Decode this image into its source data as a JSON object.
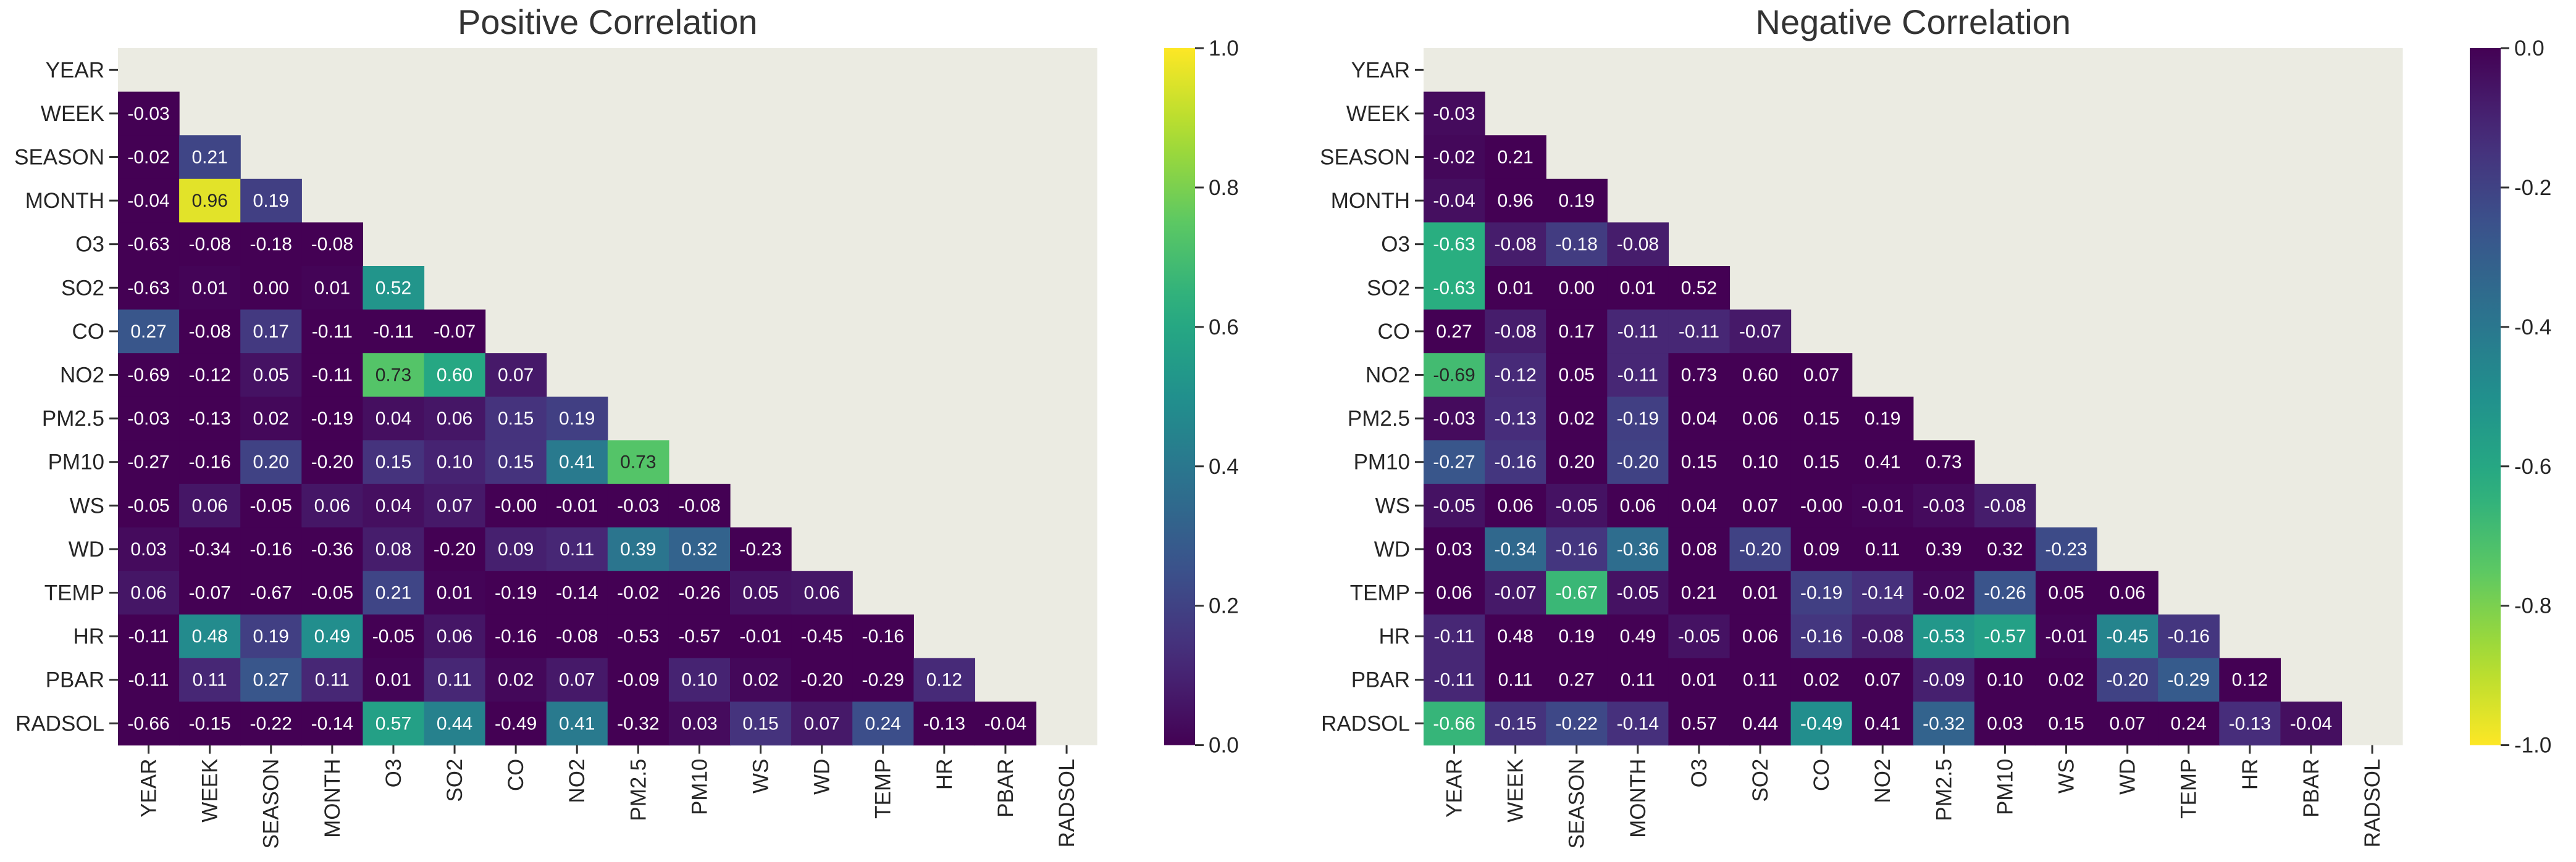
{
  "chart_data": [
    {
      "type": "heatmap",
      "title": "Positive Correlation",
      "colormap": "viridis",
      "colorbar": {
        "range": [
          0,
          1
        ],
        "ticks": [
          "0.0",
          "0.2",
          "0.4",
          "0.6",
          "0.8",
          "1.0"
        ]
      },
      "masked_cell_color": "#ebebe2",
      "variables": [
        "YEAR",
        "WEEK",
        "SEASON",
        "MONTH",
        "O3",
        "SO2",
        "CO",
        "NO2",
        "PM2.5",
        "PM10",
        "WS",
        "WD",
        "TEMP",
        "HR",
        "PBAR",
        "RADSOL"
      ],
      "lower_triangle": [
        [],
        [
          "-0.03"
        ],
        [
          "-0.02",
          "0.21"
        ],
        [
          "-0.04",
          "0.96",
          "0.19"
        ],
        [
          "-0.63",
          "-0.08",
          "-0.18",
          "-0.08"
        ],
        [
          "-0.63",
          "0.01",
          "0.00",
          "0.01",
          "0.52"
        ],
        [
          "0.27",
          "-0.08",
          "0.17",
          "-0.11",
          "-0.11",
          "-0.07"
        ],
        [
          "-0.69",
          "-0.12",
          "0.05",
          "-0.11",
          "0.73",
          "0.60",
          "0.07"
        ],
        [
          "-0.03",
          "-0.13",
          "0.02",
          "-0.19",
          "0.04",
          "0.06",
          "0.15",
          "0.19"
        ],
        [
          "-0.27",
          "-0.16",
          "0.20",
          "-0.20",
          "0.15",
          "0.10",
          "0.15",
          "0.41",
          "0.73"
        ],
        [
          "-0.05",
          "0.06",
          "-0.05",
          "0.06",
          "0.04",
          "0.07",
          "-0.00",
          "-0.01",
          "-0.03",
          "-0.08"
        ],
        [
          "0.03",
          "-0.34",
          "-0.16",
          "-0.36",
          "0.08",
          "-0.20",
          "0.09",
          "0.11",
          "0.39",
          "0.32",
          "-0.23"
        ],
        [
          "0.06",
          "-0.07",
          "-0.67",
          "-0.05",
          "0.21",
          "0.01",
          "-0.19",
          "-0.14",
          "-0.02",
          "-0.26",
          "0.05",
          "0.06"
        ],
        [
          "-0.11",
          "0.48",
          "0.19",
          "0.49",
          "-0.05",
          "0.06",
          "-0.16",
          "-0.08",
          "-0.53",
          "-0.57",
          "-0.01",
          "-0.45",
          "-0.16"
        ],
        [
          "-0.11",
          "0.11",
          "0.27",
          "0.11",
          "0.01",
          "0.11",
          "0.02",
          "0.07",
          "-0.09",
          "0.10",
          "0.02",
          "-0.20",
          "-0.29",
          "0.12"
        ],
        [
          "-0.66",
          "-0.15",
          "-0.22",
          "-0.14",
          "0.57",
          "0.44",
          "-0.49",
          "0.41",
          "-0.32",
          "0.03",
          "0.15",
          "0.07",
          "0.24",
          "-0.13",
          "-0.04"
        ]
      ]
    },
    {
      "type": "heatmap",
      "title": "Negative Correlation",
      "colormap": "viridis_r",
      "colorbar": {
        "range": [
          -1,
          0
        ],
        "ticks": [
          "-1.0",
          "-0.8",
          "-0.6",
          "-0.4",
          "-0.2",
          "0.0"
        ]
      },
      "masked_cell_color": "#ebebe2",
      "variables": [
        "YEAR",
        "WEEK",
        "SEASON",
        "MONTH",
        "O3",
        "SO2",
        "CO",
        "NO2",
        "PM2.5",
        "PM10",
        "WS",
        "WD",
        "TEMP",
        "HR",
        "PBAR",
        "RADSOL"
      ],
      "lower_triangle": "same values as Positive Correlation"
    }
  ]
}
